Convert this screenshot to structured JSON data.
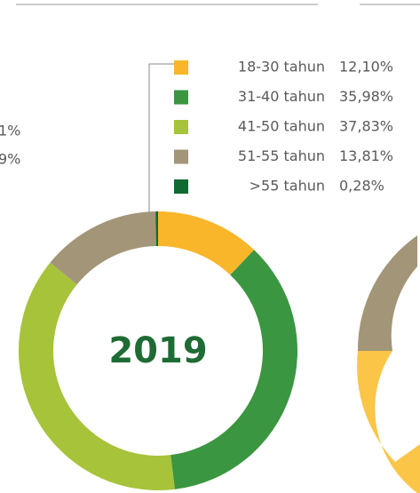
{
  "chart_data": {
    "type": "pie",
    "donut": true,
    "title": "2019",
    "categories": [
      "18-30 tahun",
      "31-40 tahun",
      "41-50 tahun",
      "51-55 tahun",
      ">55 tahun"
    ],
    "values": [
      12.1,
      35.98,
      37.83,
      13.81,
      0.28
    ],
    "value_labels": [
      "12,10%",
      "35,98%",
      "37,83%",
      "13,81%",
      "0,28%"
    ],
    "colors": [
      "#f9b62b",
      "#3a9640",
      "#a6c33a",
      "#a39578",
      "#0e6a30"
    ]
  },
  "partial_labels": [
    "1%",
    "9%"
  ]
}
